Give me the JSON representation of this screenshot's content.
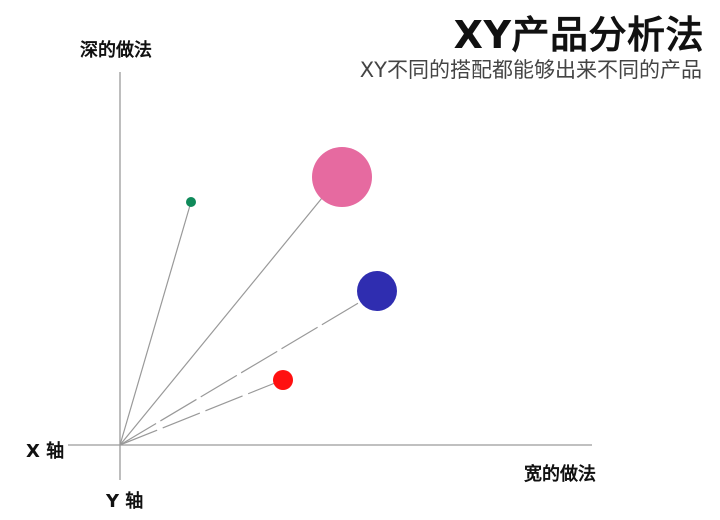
{
  "header": {
    "title": "XY产品分析法",
    "subtitle": "XY不同的搭配都能够出来不同的产品"
  },
  "axes": {
    "deep_label": "深的做法",
    "x_label": "X 轴",
    "wide_label": "宽的做法",
    "y_label": "Y 轴"
  },
  "colors": {
    "axis": "#9a9a9a",
    "line": "#999999",
    "green": "#0f8a5a",
    "pink": "#e66aa0",
    "blue": "#2f2db0",
    "red": "#ff1010"
  },
  "products": [
    {
      "name": "green-product",
      "color": "#0f8a5a",
      "line": "solid"
    },
    {
      "name": "pink-product",
      "color": "#e66aa0",
      "line": "solid"
    },
    {
      "name": "blue-product",
      "color": "#2f2db0",
      "line": "dashed"
    },
    {
      "name": "red-product",
      "color": "#ff1010",
      "line": "dashed"
    }
  ]
}
